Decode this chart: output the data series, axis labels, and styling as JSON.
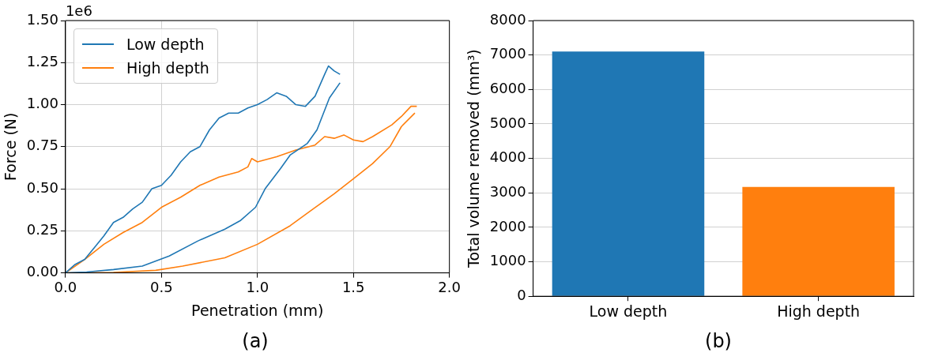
{
  "chart_data": [
    {
      "type": "line",
      "xlabel": "Penetration (mm)",
      "ylabel": "Force (N)",
      "annotations": [
        "1e6",
        "(a)"
      ],
      "xlim": [
        0,
        2
      ],
      "xticks": [
        {
          "value": 0,
          "label": "0.0"
        },
        {
          "value": 0.5,
          "label": "0.5"
        },
        {
          "value": 1,
          "label": "1.0"
        },
        {
          "value": 1.5,
          "label": "1.5"
        },
        {
          "value": 2,
          "label": "2.0"
        }
      ],
      "ylim": [
        0,
        1.5
      ],
      "yticks": [
        {
          "value": 0,
          "label": "0.00"
        },
        {
          "value": 0.25,
          "label": "0.25"
        },
        {
          "value": 0.5,
          "label": "0.50"
        },
        {
          "value": 0.75,
          "label": "0.75"
        },
        {
          "value": 1,
          "label": "1.00"
        },
        {
          "value": 1.25,
          "label": "1.25"
        },
        {
          "value": 1.5,
          "label": "1.50"
        }
      ],
      "grid": true,
      "legend": "top left",
      "series": [
        {
          "name": "Low depth",
          "color": "#1f77b4",
          "x": [
            0,
            0.05,
            0.1,
            0.15,
            0.2,
            0.25,
            0.3,
            0.35,
            0.4,
            0.45,
            0.5,
            0.55,
            0.6,
            0.65,
            0.7,
            0.75,
            0.8,
            0.85,
            0.9,
            0.95,
            1.0,
            1.05,
            1.1,
            1.15,
            1.2,
            1.25,
            1.3,
            1.35,
            1.37,
            1.4,
            1.43
          ],
          "values": [
            0,
            0.05,
            0.08,
            0.15,
            0.22,
            0.3,
            0.33,
            0.38,
            0.42,
            0.5,
            0.52,
            0.58,
            0.66,
            0.72,
            0.75,
            0.85,
            0.92,
            0.95,
            0.95,
            0.98,
            1.0,
            1.03,
            1.07,
            1.05,
            1.0,
            0.99,
            1.05,
            1.18,
            1.23,
            1.2,
            1.18
          ]
        },
        {
          "color": "#1f77b4",
          "x": [
            1.43,
            1.375,
            1.31,
            1.26,
            1.17,
            1.12,
            1.04,
            0.99,
            0.91,
            0.83,
            0.69,
            0.54,
            0.4,
            0.25,
            0.11,
            0
          ],
          "values": [
            1.13,
            1.04,
            0.85,
            0.77,
            0.7,
            0.62,
            0.5,
            0.39,
            0.31,
            0.26,
            0.19,
            0.1,
            0.04,
            0.02,
            0.005,
            0
          ]
        },
        {
          "name": "High depth",
          "color": "#ff7f0e",
          "x": [
            0,
            0.1,
            0.2,
            0.3,
            0.4,
            0.5,
            0.6,
            0.7,
            0.8,
            0.9,
            0.95,
            0.97,
            1.0,
            1.1,
            1.2,
            1.3,
            1.35,
            1.4,
            1.45,
            1.5,
            1.55,
            1.6,
            1.7,
            1.75,
            1.8,
            1.83
          ],
          "values": [
            0,
            0.08,
            0.17,
            0.24,
            0.3,
            0.39,
            0.45,
            0.52,
            0.57,
            0.6,
            0.63,
            0.68,
            0.66,
            0.69,
            0.73,
            0.76,
            0.81,
            0.8,
            0.82,
            0.79,
            0.78,
            0.81,
            0.88,
            0.93,
            0.99,
            0.99
          ]
        },
        {
          "color": "#ff7f0e",
          "x": [
            1.82,
            1.75,
            1.69,
            1.6,
            1.5,
            1.4,
            1.29,
            1.17,
            1.0,
            0.83,
            0.61,
            0.47,
            0.25,
            0
          ],
          "values": [
            0.95,
            0.87,
            0.75,
            0.65,
            0.56,
            0.47,
            0.38,
            0.28,
            0.17,
            0.09,
            0.04,
            0.015,
            0.003,
            0
          ]
        }
      ]
    },
    {
      "type": "bar",
      "ylabel": "Total volume removed (mm³)",
      "annotations": [
        "(b)"
      ],
      "categories": [
        "Low depth",
        "High depth"
      ],
      "values": [
        7100,
        3170
      ],
      "colors": [
        "#1f77b4",
        "#ff7f0e"
      ],
      "ylim": [
        0,
        8000
      ],
      "yticks": [
        0,
        1000,
        2000,
        3000,
        4000,
        5000,
        6000,
        7000,
        8000
      ],
      "grid": "y"
    }
  ]
}
